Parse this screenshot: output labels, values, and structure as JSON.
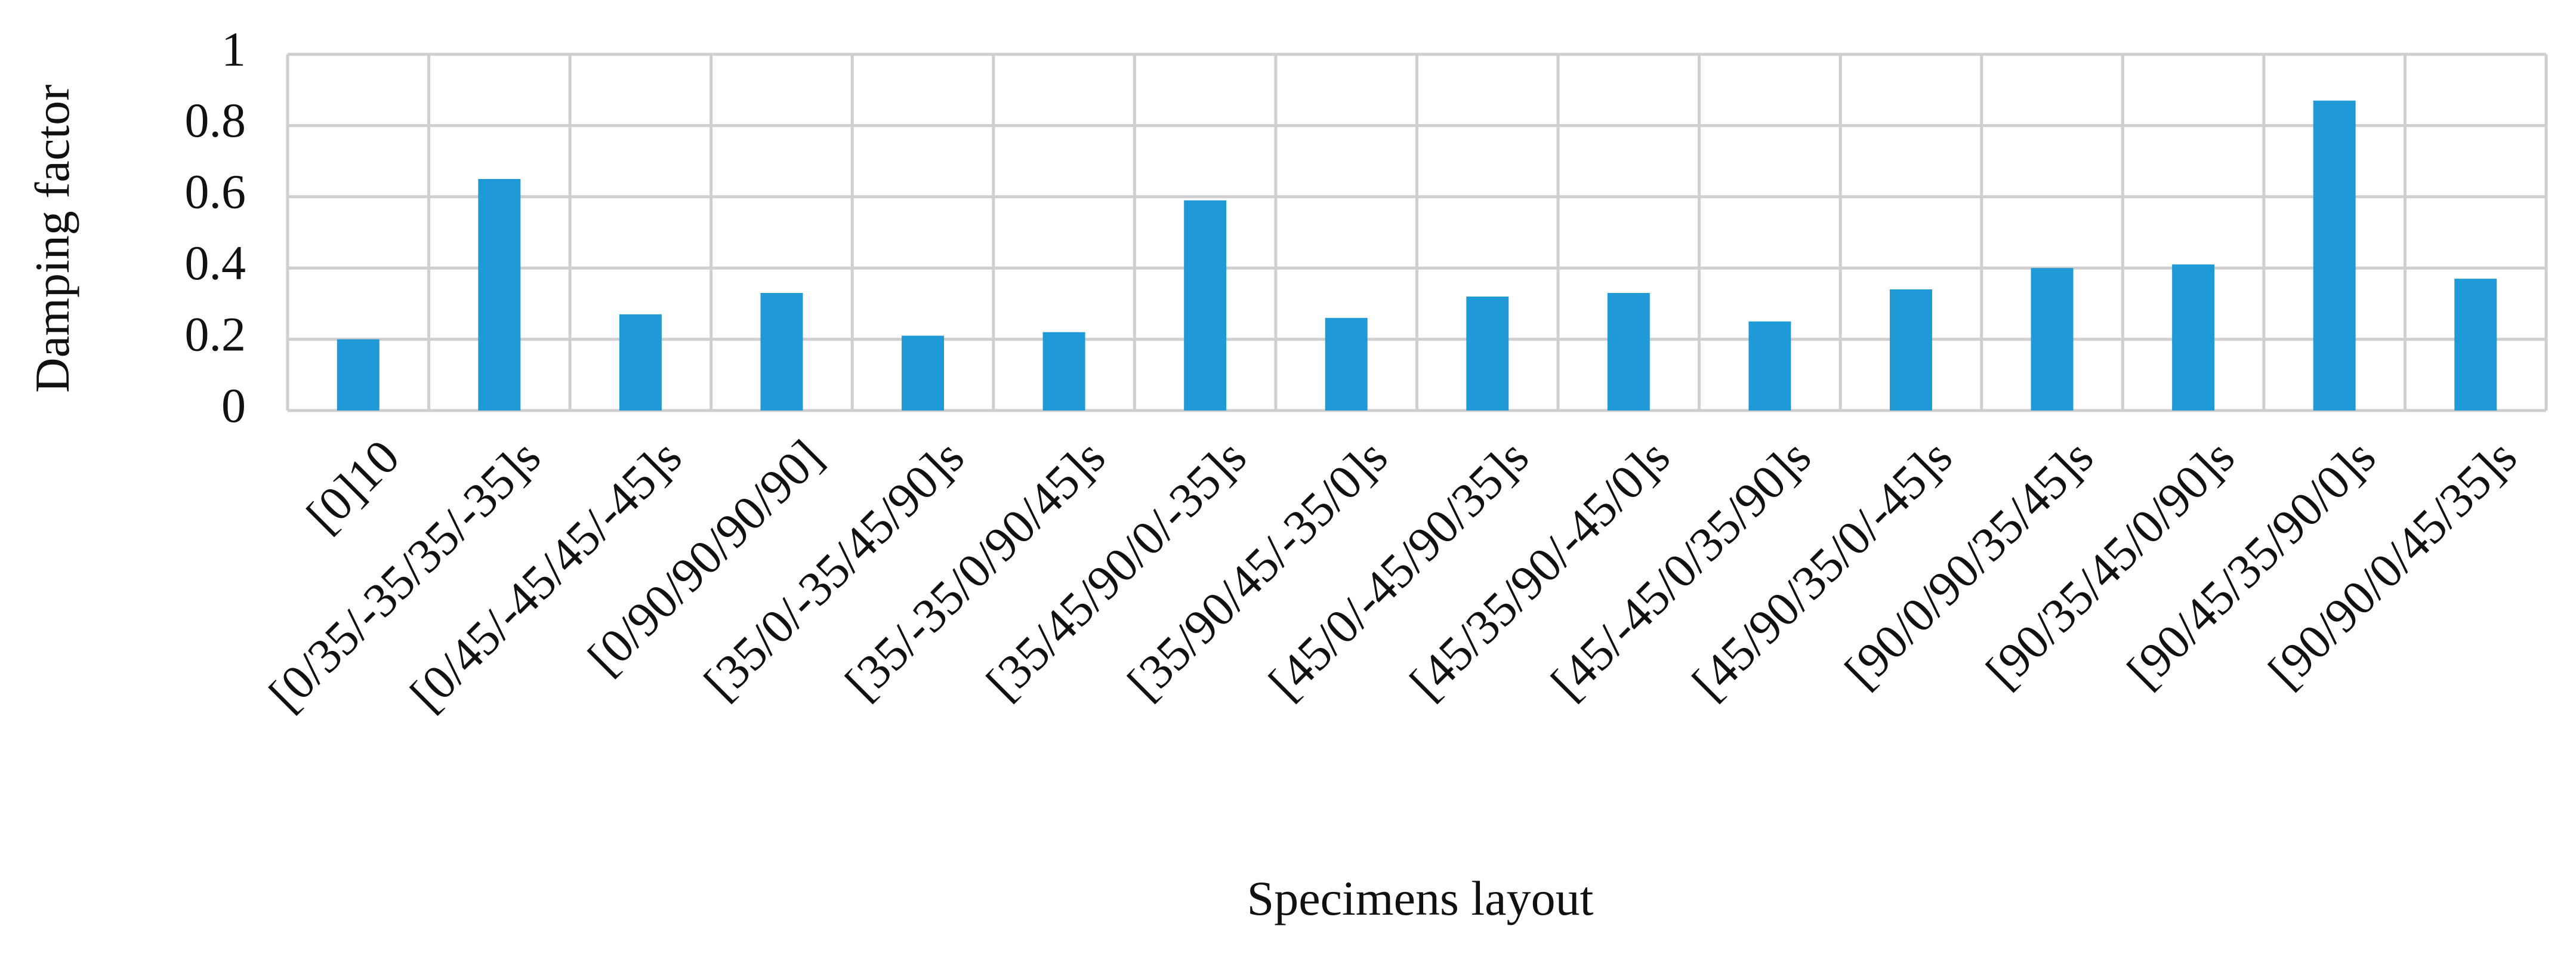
{
  "chart_data": {
    "type": "bar",
    "x_label": "Specimens layout",
    "y_label": "Damping factor",
    "categories": [
      "[0]10",
      "[0/35/-35/35/-35]s",
      "[0/45/-45/45/-45]s",
      "[0/90/90/90/90]",
      "[35/0/-35/45/90]s",
      "[35/-35/0/90/45]s",
      "[35/45/90/0/-35]s",
      "[35/90/45/-35/0]s",
      "[45/0/-45/90/35]s",
      "[45/35/90/-45/0]s",
      "[45/-45/0/35/90]s",
      "[45/90/35/0/-45]s",
      "[90/0/90/35/45]s",
      "[90/35/45/0/90]s",
      "[90/45/35/90/0]s",
      "[90/90/0/45/35]s"
    ],
    "values": [
      0.2,
      0.65,
      0.27,
      0.33,
      0.21,
      0.22,
      0.59,
      0.26,
      0.32,
      0.33,
      0.25,
      0.34,
      0.4,
      0.41,
      0.87,
      0.37
    ],
    "color": "#1f9ad6",
    "ylim": [
      0,
      1
    ],
    "yticks": [
      0,
      0.2,
      0.4,
      0.6,
      0.8,
      1
    ],
    "grid": true
  }
}
